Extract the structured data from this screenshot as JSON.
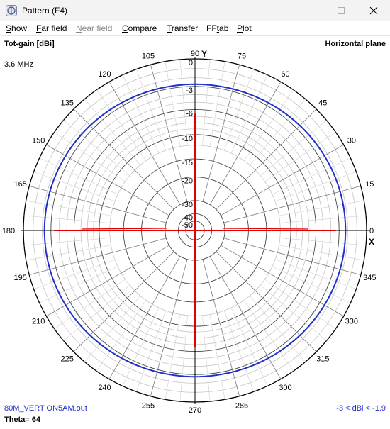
{
  "window": {
    "title": "Pattern   (F4)"
  },
  "menu": [
    {
      "key": "S",
      "rest": "how",
      "disabled": false,
      "name": "menu-show"
    },
    {
      "key": "F",
      "rest": "ar field",
      "disabled": false,
      "name": "menu-far-field"
    },
    {
      "key": "N",
      "rest": "ear field",
      "disabled": true,
      "name": "menu-near-field"
    },
    {
      "key": "C",
      "rest": "ompare",
      "disabled": false,
      "name": "menu-compare"
    },
    {
      "key": "T",
      "rest": "ransfer",
      "disabled": false,
      "name": "menu-transfer"
    },
    {
      "pre": "FF",
      "key": "t",
      "rest": "ab",
      "disabled": false,
      "name": "menu-fftab"
    },
    {
      "key": "P",
      "rest": "lot",
      "disabled": false,
      "name": "menu-plot"
    }
  ],
  "plot": {
    "gain_label": "Tot-gain [dBi]",
    "frequency": "3.6 MHz",
    "plane": "Horizontal plane",
    "y_axis": "Y",
    "x_axis": "X",
    "file": "80M_VERT ON5AM.out",
    "range": "-3 < dBi < -1.9",
    "theta": "Theta= 64"
  },
  "chart_data": {
    "type": "polar",
    "angle_labels": [
      "0",
      "15",
      "30",
      "45",
      "60",
      "75",
      "90",
      "105",
      "120",
      "135",
      "150",
      "165",
      "180",
      "195",
      "210",
      "225",
      "240",
      "255",
      "270",
      "285",
      "300",
      "315",
      "330",
      "345"
    ],
    "ring_labels": [
      "0",
      "-3",
      "-6",
      "-10",
      "-15",
      "-20",
      "-30",
      "-40",
      "-50"
    ],
    "ring_values_db": [
      0,
      -3,
      -6,
      -10,
      -15,
      -20,
      -30,
      -40,
      -50
    ],
    "series": [
      {
        "color": "#1f2fc8",
        "gain_dbi_omni": -2.5
      }
    ],
    "secondary": {
      "color": "#e00000",
      "description_hidden": true
    }
  }
}
